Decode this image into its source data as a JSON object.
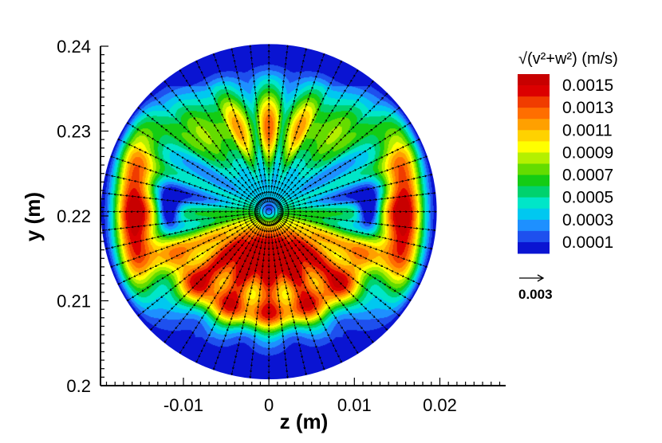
{
  "chart_data": {
    "type": "contour",
    "title": "",
    "xlabel": "z  (m)",
    "ylabel": "y  (m)",
    "xlim": [
      -0.0197,
      0.0277
    ],
    "ylim": [
      0.2,
      0.24
    ],
    "x_ticks": [
      {
        "value": -0.01,
        "label": "-0.01"
      },
      {
        "value": 0,
        "label": "0"
      },
      {
        "value": 0.01,
        "label": "0.01"
      },
      {
        "value": 0.02,
        "label": "0.02"
      }
    ],
    "y_ticks": [
      {
        "value": 0.2,
        "label": "0.2"
      },
      {
        "value": 0.21,
        "label": "0.21"
      },
      {
        "value": 0.22,
        "label": "0.22"
      },
      {
        "value": 0.23,
        "label": "0.23"
      },
      {
        "value": 0.24,
        "label": "0.24"
      }
    ],
    "domain": {
      "shape": "circle",
      "center_z": 0,
      "center_y": 0.2205,
      "radius": 0.0197
    },
    "field": "sqrt(v^2+w^2)",
    "colorbar": {
      "title": "√(v²+w²)  (m/s)",
      "min": 0.0,
      "max": 0.0016,
      "labels": [
        {
          "value": 0.0015,
          "label": "0.0015"
        },
        {
          "value": 0.0013,
          "label": "0.0013"
        },
        {
          "value": 0.0011,
          "label": "0.0011"
        },
        {
          "value": 0.0009,
          "label": "0.0009"
        },
        {
          "value": 0.0007,
          "label": "0.0007"
        },
        {
          "value": 0.0005,
          "label": "0.0005"
        },
        {
          "value": 0.0003,
          "label": "0.0003"
        },
        {
          "value": 0.0001,
          "label": "0.0001"
        }
      ]
    },
    "vector_reference": {
      "value": 0.003,
      "label": "0.003"
    },
    "levels": 16
  },
  "colors": {
    "colormap": [
      "#0a14d2",
      "#1e50ee",
      "#1e90ff",
      "#00c8f0",
      "#00e6c8",
      "#00d26e",
      "#14cc14",
      "#64dc00",
      "#b4f000",
      "#ffff00",
      "#ffd200",
      "#ffa000",
      "#ff6e00",
      "#f03c00",
      "#dc0000",
      "#c80000"
    ],
    "axis": "#000000",
    "arrows": "#000000"
  }
}
